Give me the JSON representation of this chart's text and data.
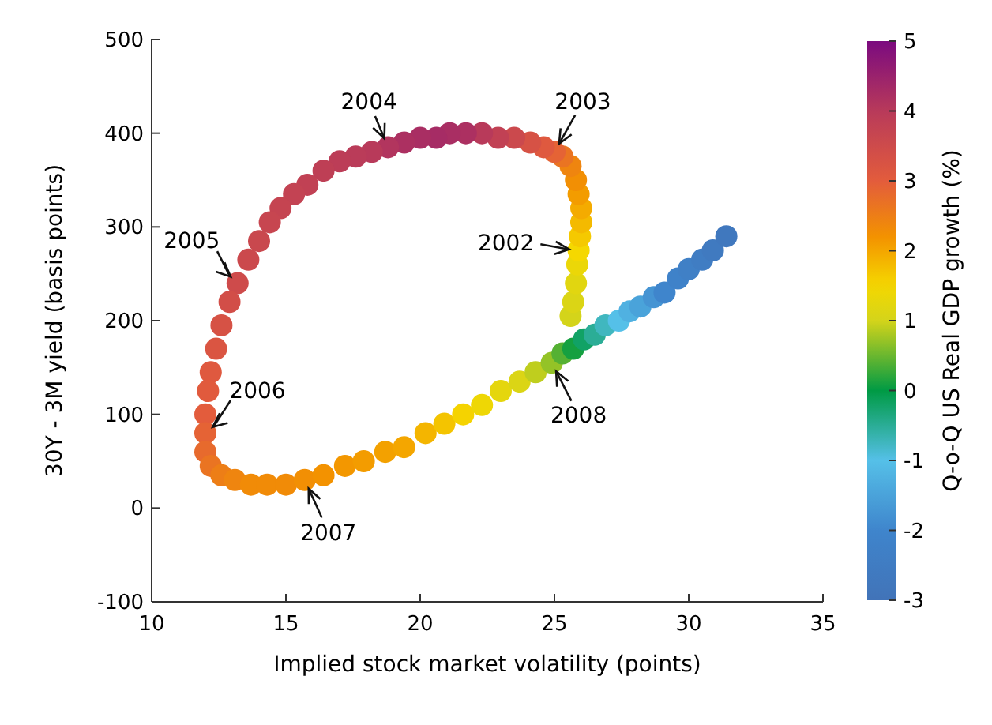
{
  "chart_data": {
    "type": "scatter",
    "xlabel": "Implied stock market volatility (points)",
    "ylabel": "30Y - 3M yield (basis points)",
    "clabel": "Q-o-Q US Real GDP growth (%)",
    "x": [
      25.6,
      25.7,
      25.8,
      25.85,
      25.9,
      25.95,
      26.0,
      26.0,
      25.9,
      25.8,
      25.6,
      25.3,
      25.0,
      24.6,
      24.1,
      23.5,
      22.9,
      22.3,
      21.7,
      21.1,
      20.6,
      20.0,
      19.4,
      18.8,
      18.2,
      17.6,
      17.0,
      16.4,
      15.8,
      15.3,
      14.8,
      14.4,
      14.0,
      13.6,
      13.2,
      12.9,
      12.6,
      12.4,
      12.2,
      12.1,
      12.0,
      12.0,
      12.0,
      12.2,
      12.6,
      13.1,
      13.7,
      14.3,
      15.0,
      15.7,
      16.4,
      17.2,
      17.9,
      18.7,
      19.4,
      20.2,
      20.9,
      21.6,
      22.3,
      23.0,
      23.7,
      24.3,
      24.9,
      25.3,
      25.7,
      26.1,
      26.5,
      26.9,
      27.4,
      27.8,
      28.2,
      28.7,
      29.1,
      29.6,
      30.0,
      30.5,
      30.9,
      31.4
    ],
    "values": [
      205,
      220,
      240,
      260,
      275,
      290,
      305,
      320,
      335,
      350,
      365,
      375,
      380,
      385,
      390,
      395,
      395,
      400,
      400,
      400,
      395,
      395,
      390,
      385,
      380,
      375,
      370,
      360,
      345,
      335,
      320,
      305,
      285,
      265,
      240,
      220,
      195,
      170,
      145,
      125,
      100,
      80,
      60,
      45,
      35,
      30,
      25,
      25,
      25,
      30,
      35,
      45,
      50,
      60,
      65,
      80,
      90,
      100,
      110,
      125,
      135,
      145,
      155,
      165,
      170,
      180,
      185,
      195,
      200,
      210,
      215,
      225,
      230,
      245,
      255,
      265,
      275,
      290
    ],
    "cvalues": [
      1.0,
      1.1,
      1.2,
      1.35,
      1.5,
      1.65,
      1.8,
      1.95,
      2.1,
      2.25,
      2.4,
      2.65,
      2.9,
      3.1,
      3.3,
      3.55,
      3.8,
      4.0,
      4.2,
      4.25,
      4.3,
      4.25,
      4.2,
      4.1,
      4.0,
      3.95,
      3.9,
      3.85,
      3.8,
      3.75,
      3.7,
      3.65,
      3.6,
      3.55,
      3.5,
      3.4,
      3.3,
      3.2,
      3.1,
      3.05,
      3.0,
      2.9,
      2.8,
      2.65,
      2.5,
      2.4,
      2.3,
      2.3,
      2.3,
      2.25,
      2.2,
      2.15,
      2.1,
      2.05,
      2.0,
      1.85,
      1.7,
      1.55,
      1.4,
      1.25,
      1.1,
      0.9,
      0.7,
      0.4,
      0.1,
      -0.2,
      -0.5,
      -0.75,
      -1.0,
      -1.25,
      -1.5,
      -1.75,
      -2.0,
      -2.15,
      -2.3,
      -2.45,
      -2.6,
      -2.7
    ],
    "marker": "circle",
    "xlim": [
      10,
      35
    ],
    "ylim": [
      -100,
      500
    ],
    "xticks": [
      10,
      15,
      20,
      25,
      30,
      35
    ],
    "yticks": [
      -100,
      0,
      100,
      200,
      300,
      400,
      500
    ],
    "clim": [
      -3,
      5
    ],
    "cticks": [
      -3,
      -2,
      -1,
      0,
      1,
      2,
      3,
      4,
      5
    ],
    "annotations": [
      {
        "text": "2002",
        "x": 25.9,
        "y": 275
      },
      {
        "text": "2003",
        "x": 25.0,
        "y": 380
      },
      {
        "text": "2004",
        "x": 18.8,
        "y": 385
      },
      {
        "text": "2005",
        "x": 13.2,
        "y": 240
      },
      {
        "text": "2006",
        "x": 12.0,
        "y": 80
      },
      {
        "text": "2007",
        "x": 15.7,
        "y": 30
      },
      {
        "text": "2008",
        "x": 24.9,
        "y": 155
      }
    ]
  }
}
